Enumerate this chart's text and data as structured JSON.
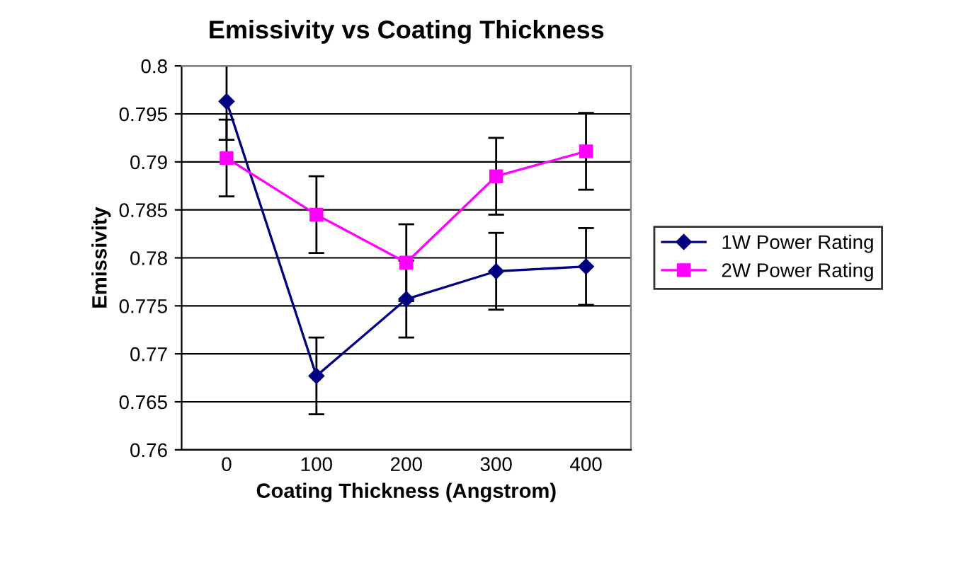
{
  "chart_data": {
    "type": "line",
    "title": "Emissivity vs Coating Thickness",
    "xlabel": "Coating Thickness (Angstrom)",
    "ylabel": "Emissivity",
    "categories": [
      "0",
      "100",
      "200",
      "300",
      "400"
    ],
    "series": [
      {
        "name": "1W Power Rating",
        "color": "#000080",
        "marker": "diamond",
        "values": [
          0.7963,
          0.7677,
          0.7757,
          0.7786,
          0.7791
        ],
        "errors": [
          0.004,
          0.004,
          0.004,
          0.004,
          0.004
        ]
      },
      {
        "name": "2W Power Rating",
        "color": "#ff00ff",
        "marker": "square",
        "values": [
          0.7904,
          0.7845,
          0.7795,
          0.7885,
          0.7911
        ],
        "errors": [
          0.004,
          0.004,
          0.004,
          0.004,
          0.004
        ]
      }
    ],
    "ylim": [
      0.76,
      0.8
    ],
    "yticks": [
      0.76,
      0.765,
      0.77,
      0.775,
      0.78,
      0.785,
      0.79,
      0.795,
      0.8
    ],
    "grid": "y",
    "legend": "right",
    "line_style": "solid"
  }
}
